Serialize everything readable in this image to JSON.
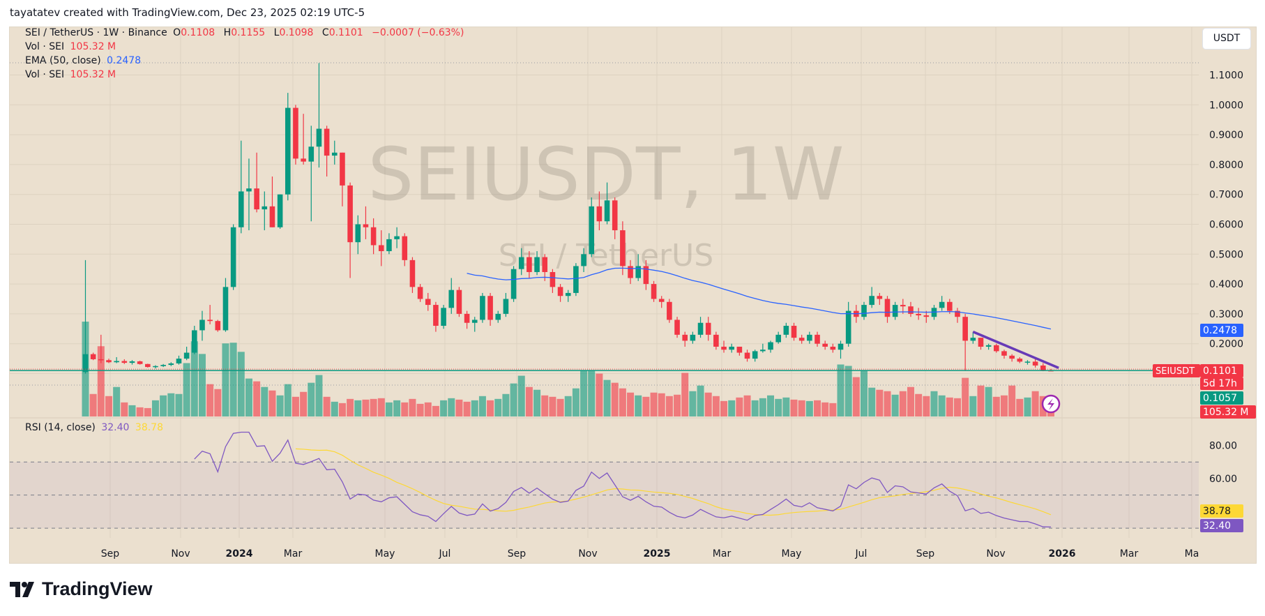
{
  "credit": "tayatatev created with TradingView.com, Dec 23, 2025 02:19 UTC-5",
  "legend": {
    "symbol": "SEI / TetherUS · 1W · Binance",
    "o_label": "O",
    "o": "0.1108",
    "h_label": "H",
    "h": "0.1155",
    "l_label": "L",
    "l": "0.1098",
    "c_label": "C",
    "c": "0.1101",
    "change": "−0.0007 (−0.63%)",
    "vol_label": "Vol · SEI",
    "vol": "105.32 M",
    "ema_label": "EMA (50, close)",
    "ema": "0.2478",
    "vol2_label": "Vol · SEI",
    "vol2": "105.32 M",
    "rsi_label": "RSI (14, close)",
    "rsi": "32.40",
    "rsi_ma": "38.78"
  },
  "currency_button": "USDT",
  "watermark": {
    "title": "SEIUSDT, 1W",
    "subtitle": "SEI / TetherUS"
  },
  "logo_text": "TradingView",
  "colors": {
    "up": "#089981",
    "down": "#f23645",
    "ema": "#2962ff",
    "rsi": "#7e57c2",
    "rsi_ma": "#fdd835",
    "trendline": "#673ab7",
    "background": "#ebe0cf"
  },
  "chart_data": [
    {
      "type": "candlestick",
      "interval": "1W",
      "columns": [
        "open",
        "high",
        "low",
        "close",
        "volume_M"
      ],
      "candles": [
        [
          0.105,
          0.48,
          0.1,
          0.165,
          1350
        ],
        [
          0.165,
          0.17,
          0.145,
          0.148,
          320
        ],
        [
          0.148,
          0.23,
          0.135,
          0.145,
          1000
        ],
        [
          0.145,
          0.15,
          0.135,
          0.138,
          290
        ],
        [
          0.138,
          0.155,
          0.135,
          0.142,
          420
        ],
        [
          0.142,
          0.148,
          0.132,
          0.136,
          200
        ],
        [
          0.136,
          0.145,
          0.13,
          0.141,
          160
        ],
        [
          0.141,
          0.143,
          0.13,
          0.132,
          130
        ],
        [
          0.132,
          0.133,
          0.12,
          0.122,
          120
        ],
        [
          0.122,
          0.128,
          0.117,
          0.125,
          230
        ],
        [
          0.125,
          0.132,
          0.122,
          0.129,
          300
        ],
        [
          0.129,
          0.138,
          0.125,
          0.134,
          330
        ],
        [
          0.134,
          0.16,
          0.13,
          0.15,
          320
        ],
        [
          0.15,
          0.19,
          0.145,
          0.17,
          760
        ],
        [
          0.17,
          0.26,
          0.165,
          0.245,
          1070
        ],
        [
          0.245,
          0.31,
          0.21,
          0.28,
          890
        ],
        [
          0.28,
          0.33,
          0.265,
          0.276,
          460
        ],
        [
          0.276,
          0.28,
          0.24,
          0.245,
          390
        ],
        [
          0.245,
          0.42,
          0.24,
          0.39,
          1040
        ],
        [
          0.39,
          0.6,
          0.38,
          0.59,
          1050
        ],
        [
          0.59,
          0.88,
          0.57,
          0.71,
          920
        ],
        [
          0.71,
          0.82,
          0.58,
          0.72,
          540
        ],
        [
          0.72,
          0.84,
          0.64,
          0.65,
          500
        ],
        [
          0.65,
          0.71,
          0.58,
          0.66,
          420
        ],
        [
          0.66,
          0.76,
          0.59,
          0.59,
          370
        ],
        [
          0.59,
          0.7,
          0.585,
          0.7,
          300
        ],
        [
          0.7,
          1.04,
          0.68,
          0.99,
          460
        ],
        [
          0.99,
          1.0,
          0.8,
          0.82,
          280
        ],
        [
          0.82,
          0.97,
          0.8,
          0.81,
          350
        ],
        [
          0.81,
          0.93,
          0.61,
          0.86,
          480
        ],
        [
          0.86,
          1.14,
          0.79,
          0.92,
          590
        ],
        [
          0.92,
          0.93,
          0.76,
          0.83,
          280
        ],
        [
          0.83,
          0.88,
          0.8,
          0.84,
          210
        ],
        [
          0.84,
          0.84,
          0.66,
          0.73,
          190
        ],
        [
          0.73,
          0.74,
          0.42,
          0.54,
          250
        ],
        [
          0.54,
          0.63,
          0.5,
          0.6,
          230
        ],
        [
          0.6,
          0.66,
          0.55,
          0.59,
          240
        ],
        [
          0.59,
          0.62,
          0.5,
          0.53,
          250
        ],
        [
          0.53,
          0.58,
          0.46,
          0.51,
          260
        ],
        [
          0.51,
          0.57,
          0.5,
          0.55,
          200
        ],
        [
          0.55,
          0.59,
          0.52,
          0.56,
          230
        ],
        [
          0.56,
          0.57,
          0.46,
          0.48,
          200
        ],
        [
          0.48,
          0.49,
          0.37,
          0.39,
          250
        ],
        [
          0.39,
          0.4,
          0.34,
          0.35,
          180
        ],
        [
          0.35,
          0.37,
          0.31,
          0.33,
          200
        ],
        [
          0.33,
          0.34,
          0.24,
          0.26,
          150
        ],
        [
          0.26,
          0.33,
          0.25,
          0.32,
          230
        ],
        [
          0.32,
          0.42,
          0.3,
          0.38,
          260
        ],
        [
          0.38,
          0.39,
          0.29,
          0.3,
          240
        ],
        [
          0.3,
          0.31,
          0.25,
          0.27,
          210
        ],
        [
          0.27,
          0.29,
          0.24,
          0.28,
          230
        ],
        [
          0.28,
          0.37,
          0.27,
          0.36,
          290
        ],
        [
          0.36,
          0.37,
          0.26,
          0.28,
          230
        ],
        [
          0.28,
          0.31,
          0.27,
          0.3,
          250
        ],
        [
          0.3,
          0.37,
          0.29,
          0.35,
          320
        ],
        [
          0.35,
          0.46,
          0.34,
          0.45,
          470
        ],
        [
          0.45,
          0.52,
          0.43,
          0.49,
          580
        ],
        [
          0.49,
          0.51,
          0.42,
          0.44,
          420
        ],
        [
          0.44,
          0.51,
          0.43,
          0.49,
          380
        ],
        [
          0.49,
          0.5,
          0.41,
          0.44,
          300
        ],
        [
          0.44,
          0.45,
          0.37,
          0.39,
          280
        ],
        [
          0.39,
          0.4,
          0.34,
          0.36,
          250
        ],
        [
          0.36,
          0.38,
          0.34,
          0.37,
          290
        ],
        [
          0.37,
          0.47,
          0.36,
          0.46,
          400
        ],
        [
          0.46,
          0.52,
          0.44,
          0.5,
          660
        ],
        [
          0.5,
          0.69,
          0.49,
          0.66,
          650
        ],
        [
          0.66,
          0.71,
          0.58,
          0.61,
          610
        ],
        [
          0.61,
          0.74,
          0.6,
          0.68,
          520
        ],
        [
          0.68,
          0.69,
          0.55,
          0.58,
          480
        ],
        [
          0.58,
          0.61,
          0.43,
          0.46,
          400
        ],
        [
          0.46,
          0.48,
          0.4,
          0.42,
          340
        ],
        [
          0.42,
          0.5,
          0.41,
          0.46,
          300
        ],
        [
          0.46,
          0.48,
          0.38,
          0.4,
          280
        ],
        [
          0.4,
          0.41,
          0.34,
          0.35,
          340
        ],
        [
          0.35,
          0.36,
          0.32,
          0.34,
          330
        ],
        [
          0.34,
          0.35,
          0.27,
          0.28,
          290
        ],
        [
          0.28,
          0.29,
          0.22,
          0.23,
          310
        ],
        [
          0.23,
          0.24,
          0.19,
          0.21,
          620
        ],
        [
          0.21,
          0.24,
          0.2,
          0.23,
          360
        ],
        [
          0.23,
          0.29,
          0.22,
          0.27,
          440
        ],
        [
          0.27,
          0.29,
          0.21,
          0.23,
          340
        ],
        [
          0.23,
          0.24,
          0.18,
          0.19,
          290
        ],
        [
          0.19,
          0.21,
          0.17,
          0.18,
          220
        ],
        [
          0.18,
          0.2,
          0.17,
          0.19,
          230
        ],
        [
          0.19,
          0.19,
          0.16,
          0.17,
          270
        ],
        [
          0.17,
          0.18,
          0.14,
          0.15,
          300
        ],
        [
          0.15,
          0.18,
          0.14,
          0.175,
          230
        ],
        [
          0.175,
          0.2,
          0.17,
          0.18,
          260
        ],
        [
          0.18,
          0.21,
          0.17,
          0.205,
          300
        ],
        [
          0.205,
          0.24,
          0.2,
          0.23,
          250
        ],
        [
          0.23,
          0.27,
          0.22,
          0.26,
          270
        ],
        [
          0.26,
          0.27,
          0.21,
          0.22,
          240
        ],
        [
          0.22,
          0.23,
          0.2,
          0.21,
          230
        ],
        [
          0.21,
          0.24,
          0.2,
          0.23,
          220
        ],
        [
          0.23,
          0.24,
          0.19,
          0.2,
          230
        ],
        [
          0.2,
          0.21,
          0.18,
          0.19,
          200
        ],
        [
          0.19,
          0.2,
          0.17,
          0.18,
          190
        ],
        [
          0.18,
          0.21,
          0.15,
          0.2,
          740
        ],
        [
          0.2,
          0.34,
          0.19,
          0.31,
          720
        ],
        [
          0.31,
          0.33,
          0.27,
          0.29,
          560
        ],
        [
          0.29,
          0.34,
          0.28,
          0.33,
          660
        ],
        [
          0.33,
          0.39,
          0.32,
          0.36,
          410
        ],
        [
          0.36,
          0.37,
          0.33,
          0.35,
          380
        ],
        [
          0.35,
          0.36,
          0.27,
          0.29,
          360
        ],
        [
          0.29,
          0.34,
          0.28,
          0.33,
          310
        ],
        [
          0.33,
          0.35,
          0.3,
          0.325,
          360
        ],
        [
          0.325,
          0.34,
          0.29,
          0.3,
          420
        ],
        [
          0.3,
          0.32,
          0.28,
          0.295,
          320
        ],
        [
          0.295,
          0.31,
          0.27,
          0.29,
          290
        ],
        [
          0.29,
          0.33,
          0.28,
          0.32,
          360
        ],
        [
          0.32,
          0.36,
          0.31,
          0.34,
          300
        ],
        [
          0.34,
          0.35,
          0.3,
          0.31,
          270
        ],
        [
          0.31,
          0.32,
          0.27,
          0.29,
          260
        ],
        [
          0.29,
          0.3,
          0.11,
          0.21,
          550
        ],
        [
          0.21,
          0.24,
          0.2,
          0.22,
          290
        ],
        [
          0.22,
          0.22,
          0.18,
          0.19,
          440
        ],
        [
          0.19,
          0.2,
          0.18,
          0.195,
          420
        ],
        [
          0.195,
          0.2,
          0.17,
          0.175,
          280
        ],
        [
          0.175,
          0.18,
          0.15,
          0.16,
          300
        ],
        [
          0.16,
          0.165,
          0.14,
          0.15,
          440
        ],
        [
          0.15,
          0.155,
          0.135,
          0.14,
          250
        ],
        [
          0.137,
          0.145,
          0.13,
          0.14,
          270
        ],
        [
          0.14,
          0.15,
          0.12,
          0.127,
          360
        ],
        [
          0.127,
          0.135,
          0.108,
          0.1108,
          290
        ],
        [
          0.1108,
          0.1155,
          0.1098,
          0.1101,
          105.32
        ]
      ],
      "ema_period": 50,
      "ema_last": 0.2478,
      "trendline": {
        "from_bar": 114,
        "from_price": 0.24,
        "to_bar": 125,
        "to_price": 0.119
      },
      "price_axis": {
        "range": [
          0.1,
          1.1
        ],
        "ticks": [
          "1.1000",
          "1.0000",
          "0.9000",
          "0.8000",
          "0.7000",
          "0.6000",
          "0.5000",
          "0.4000",
          "0.3000",
          "0.2000"
        ],
        "values": [
          1.1,
          1.0,
          0.9,
          0.8,
          0.7,
          0.6,
          0.5,
          0.4,
          0.3,
          0.2
        ]
      },
      "price_tags": {
        "ema": "0.2478",
        "symbol": "SEIUSDT",
        "last": "0.1101",
        "countdown": "5d 17h",
        "prev": "0.1057",
        "volume": "105.32 M"
      },
      "time_axis": {
        "ticks": [
          "Sep",
          "Nov",
          "2024",
          "Mar",
          "May",
          "Jul",
          "Sep",
          "Nov",
          "2025",
          "Mar",
          "May",
          "Jul",
          "Sep",
          "Nov",
          "2026",
          "Mar",
          "Ma"
        ],
        "bold": [
          "2024",
          "2025",
          "2026"
        ]
      },
      "grid": true
    },
    {
      "type": "line",
      "title": "RSI (14, close)",
      "rsi_period": 14,
      "ma_period": 14,
      "last_rsi": 32.4,
      "last_ma": 38.78,
      "bands": [
        70,
        50,
        30
      ],
      "y_ticks": [
        "80.00",
        "60.00"
      ],
      "y_tick_values": [
        80,
        60
      ]
    }
  ]
}
